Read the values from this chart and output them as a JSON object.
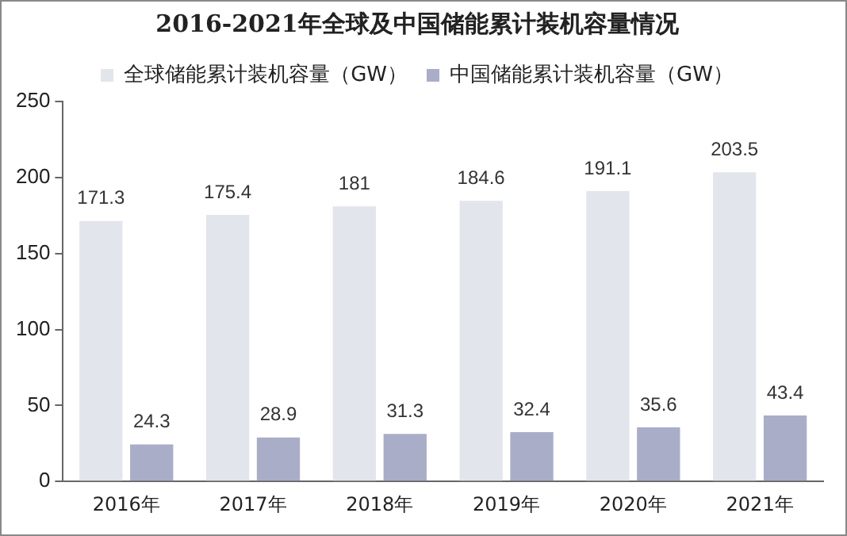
{
  "chart_data": {
    "type": "bar",
    "title": "2016-2021年全球及中国储能累计装机容量情况",
    "categories": [
      "2016年",
      "2017年",
      "2018年",
      "2019年",
      "2020年",
      "2021年"
    ],
    "series": [
      {
        "name": "全球储能累计装机容量（GW）",
        "color": "#e3e5ec",
        "values": [
          171.3,
          175.4,
          181,
          184.6,
          191.1,
          203.5
        ]
      },
      {
        "name": "中国储能累计装机容量（GW）",
        "color": "#a9adc8",
        "values": [
          24.3,
          28.9,
          31.3,
          32.4,
          35.6,
          43.4
        ]
      }
    ],
    "ylim": [
      0,
      250
    ],
    "yticks": [
      0,
      50,
      100,
      150,
      200,
      250
    ],
    "grid": false,
    "legend": "top",
    "data_labels": true
  }
}
